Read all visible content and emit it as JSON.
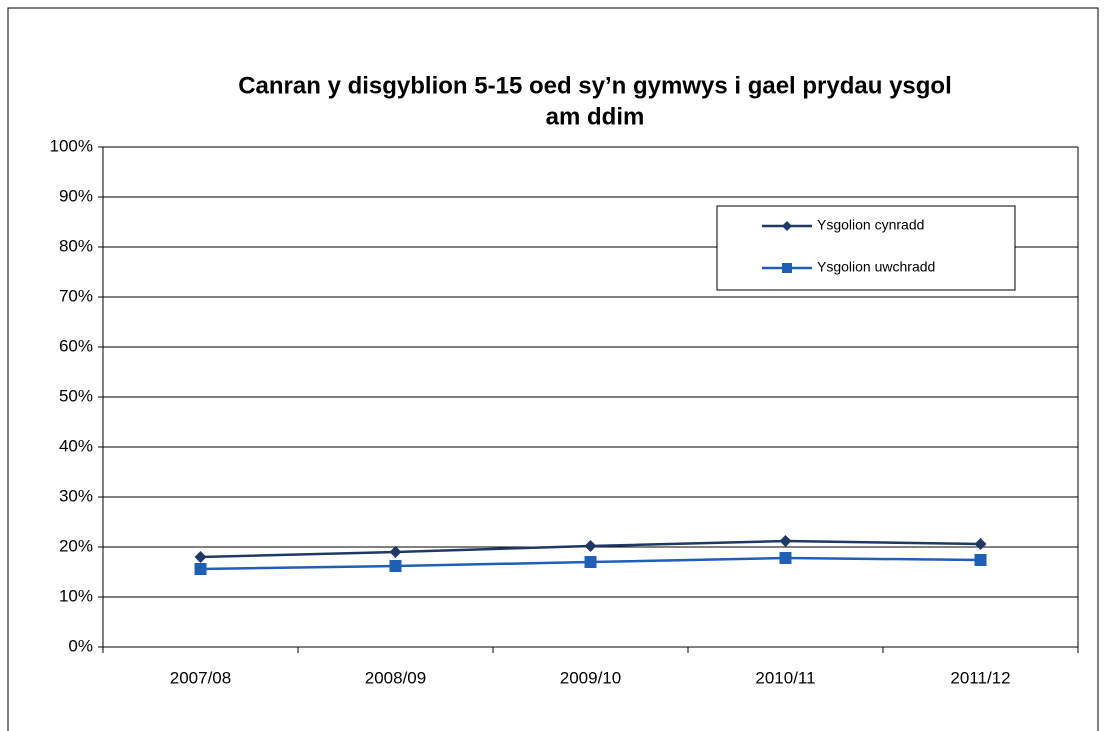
{
  "chart_data": {
    "type": "line",
    "title": [
      "Canran y disgyblion 5-15 oed sy’n gymwys  i gael prydau ysgol",
      "am ddim"
    ],
    "categories": [
      "2007/08",
      "2008/09",
      "2009/10",
      "2010/11",
      "2011/12"
    ],
    "series": [
      {
        "name": "Ysgolion cynradd",
        "color": "#1f3864",
        "marker": "diamond",
        "values": [
          18.0,
          19.0,
          20.2,
          21.2,
          20.6
        ]
      },
      {
        "name": "Ysgolion uwchradd",
        "color": "#1f5fb5",
        "marker": "square",
        "values": [
          15.6,
          16.2,
          17.0,
          17.8,
          17.4
        ]
      }
    ],
    "ylim": [
      0,
      100
    ],
    "yticks": [
      {
        "value": 0,
        "label": "0%"
      },
      {
        "value": 10,
        "label": "10%"
      },
      {
        "value": 20,
        "label": "20%"
      },
      {
        "value": 30,
        "label": "30%"
      },
      {
        "value": 40,
        "label": "40%"
      },
      {
        "value": 50,
        "label": "50%"
      },
      {
        "value": 60,
        "label": "60%"
      },
      {
        "value": 70,
        "label": "70%"
      },
      {
        "value": 80,
        "label": "80%"
      },
      {
        "value": 90,
        "label": "90%"
      },
      {
        "value": 100,
        "label": "100%"
      }
    ],
    "grid": true,
    "legend": "upper right"
  }
}
